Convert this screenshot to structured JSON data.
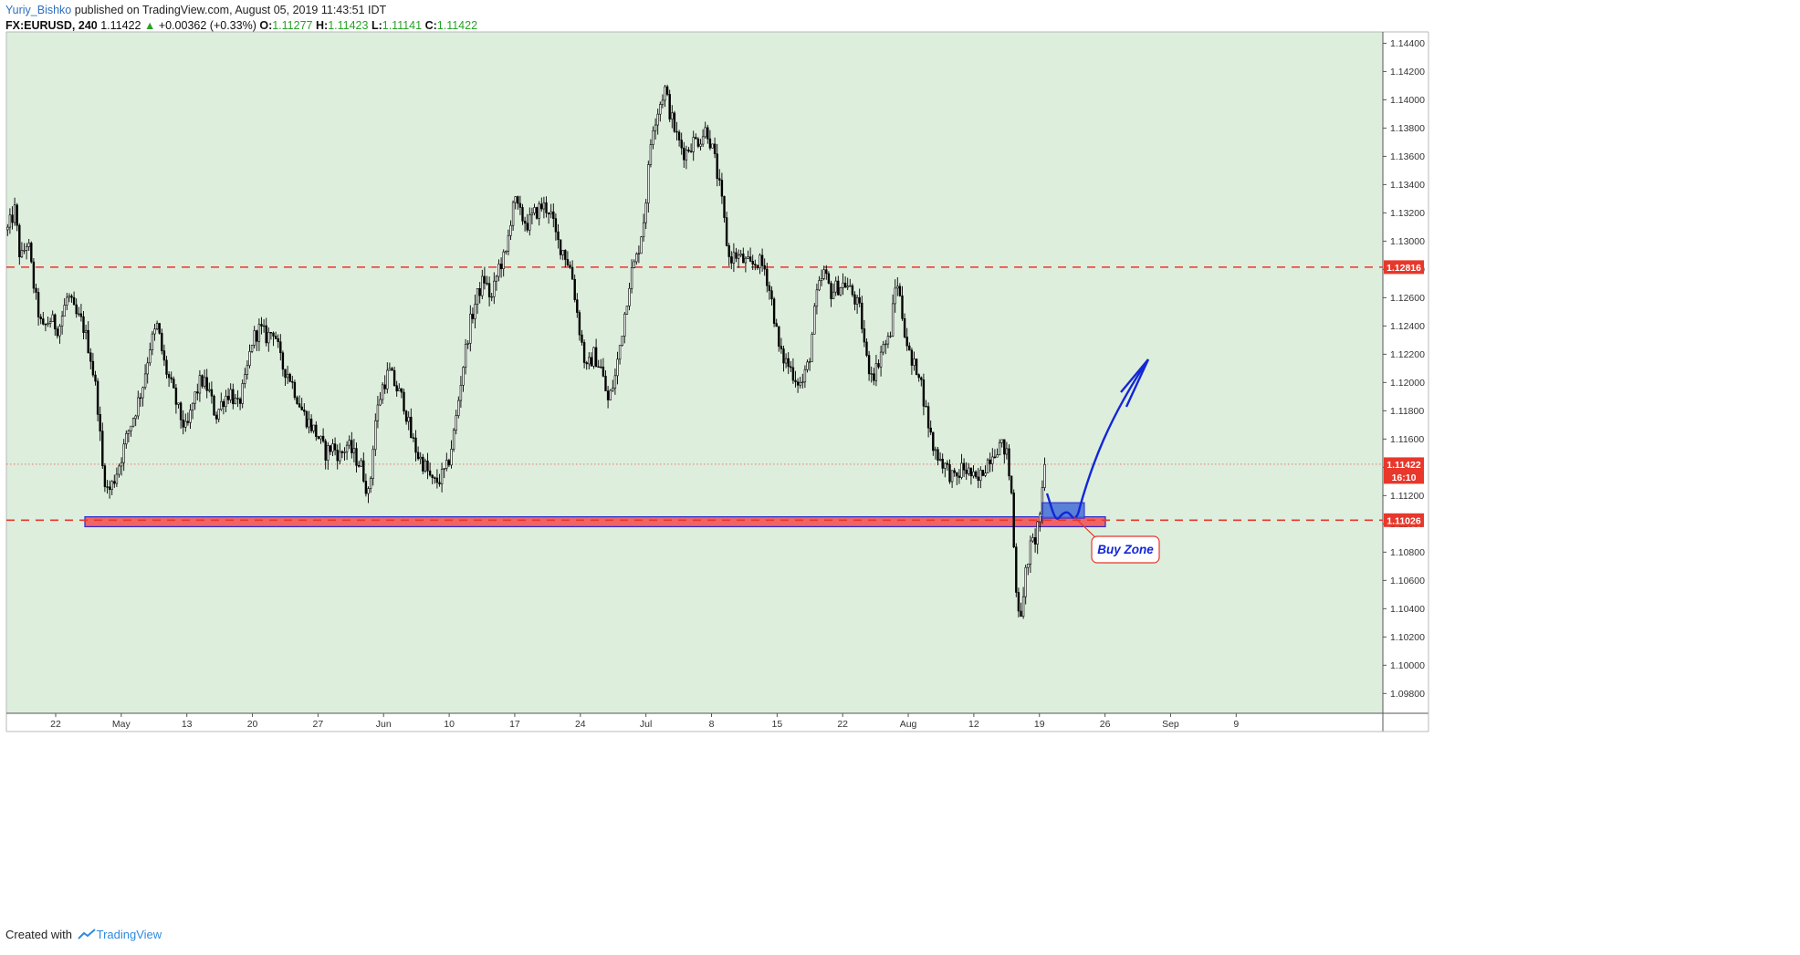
{
  "header": {
    "author": "Yuriy_Bishko",
    "published_text": "published on TradingView.com, August 05, 2019 11:43:51 IDT",
    "symbol": "FX:EURUSD, 240",
    "last": "1.11422",
    "change_arrow": "▲",
    "change": "+0.00362 (+0.33%)",
    "o_label": "O:",
    "o_value": "1.11277",
    "h_label": "H:",
    "h_value": "1.11423",
    "l_label": "L:",
    "l_value": "1.11141",
    "c_label": "C:",
    "c_value": "1.11422"
  },
  "footer": {
    "created_with": "Created with",
    "brand": "TradingView",
    "logo_icon": "tradingview-logo-icon"
  },
  "colors": {
    "chart_bg": "#ddeedd",
    "candle": "#000000",
    "level_line": "#e8372b",
    "support_zone": "#f06464",
    "buy_zone_box": "#4a74d6",
    "arrow": "#1326d8",
    "label_bg": "#e8372b",
    "label_text": "#ffffff"
  },
  "chart_data": {
    "type": "candlestick",
    "symbol": "EURUSD",
    "interval": "240",
    "yaxis": {
      "ylim": [
        1.0966,
        1.1448
      ],
      "ticks": [
        "1.14400",
        "1.14200",
        "1.14000",
        "1.13800",
        "1.13600",
        "1.13400",
        "1.13200",
        "1.13000",
        "1.12800",
        "1.12600",
        "1.12400",
        "1.12200",
        "1.12000",
        "1.11800",
        "1.11600",
        "1.11400",
        "1.11200",
        "1.11000",
        "1.10800",
        "1.10600",
        "1.10400",
        "1.10200",
        "1.10000",
        "1.09800"
      ],
      "grid": false
    },
    "xaxis": {
      "labels": [
        "22",
        "May",
        "13",
        "20",
        "27",
        "Jun",
        "10",
        "17",
        "24",
        "Jul",
        "8",
        "15",
        "22",
        "Aug",
        "12",
        "19",
        "26",
        "Sep",
        "9"
      ]
    },
    "path": [
      [
        0,
        1.1308
      ],
      [
        8,
        1.1322
      ],
      [
        14,
        1.1286
      ],
      [
        22,
        1.1301
      ],
      [
        30,
        1.1262
      ],
      [
        38,
        1.1236
      ],
      [
        46,
        1.1245
      ],
      [
        56,
        1.1238
      ],
      [
        66,
        1.1262
      ],
      [
        74,
        1.1248
      ],
      [
        82,
        1.1242
      ],
      [
        90,
        1.1222
      ],
      [
        98,
        1.119
      ],
      [
        104,
        1.114
      ],
      [
        110,
        1.1122
      ],
      [
        116,
        1.113
      ],
      [
        124,
        1.1146
      ],
      [
        132,
        1.1165
      ],
      [
        140,
        1.118
      ],
      [
        148,
        1.1198
      ],
      [
        156,
        1.1226
      ],
      [
        164,
        1.124
      ],
      [
        172,
        1.1212
      ],
      [
        180,
        1.1196
      ],
      [
        188,
        1.1178
      ],
      [
        196,
        1.1165
      ],
      [
        204,
        1.1188
      ],
      [
        212,
        1.1202
      ],
      [
        220,
        1.1195
      ],
      [
        228,
        1.1176
      ],
      [
        236,
        1.1188
      ],
      [
        244,
        1.1194
      ],
      [
        252,
        1.1182
      ],
      [
        260,
        1.12
      ],
      [
        268,
        1.123
      ],
      [
        276,
        1.1238
      ],
      [
        284,
        1.1232
      ],
      [
        292,
        1.1238
      ],
      [
        300,
        1.1212
      ],
      [
        308,
        1.1206
      ],
      [
        316,
        1.1192
      ],
      [
        324,
        1.1178
      ],
      [
        332,
        1.117
      ],
      [
        340,
        1.1162
      ],
      [
        348,
        1.115
      ],
      [
        356,
        1.1155
      ],
      [
        364,
        1.1148
      ],
      [
        372,
        1.1156
      ],
      [
        380,
        1.1148
      ],
      [
        388,
        1.114
      ],
      [
        396,
        1.1118
      ],
      [
        402,
        1.117
      ],
      [
        410,
        1.1196
      ],
      [
        418,
        1.1208
      ],
      [
        426,
        1.1196
      ],
      [
        434,
        1.1186
      ],
      [
        442,
        1.1162
      ],
      [
        450,
        1.1148
      ],
      [
        458,
        1.114
      ],
      [
        466,
        1.1128
      ],
      [
        474,
        1.1132
      ],
      [
        482,
        1.114
      ],
      [
        490,
        1.1168
      ],
      [
        498,
        1.1208
      ],
      [
        506,
        1.124
      ],
      [
        514,
        1.126
      ],
      [
        522,
        1.1274
      ],
      [
        530,
        1.1258
      ],
      [
        538,
        1.1282
      ],
      [
        546,
        1.129
      ],
      [
        554,
        1.133
      ],
      [
        562,
        1.1318
      ],
      [
        570,
        1.1312
      ],
      [
        578,
        1.132
      ],
      [
        586,
        1.1325
      ],
      [
        594,
        1.1322
      ],
      [
        602,
        1.13
      ],
      [
        610,
        1.1292
      ],
      [
        618,
        1.1278
      ],
      [
        626,
        1.124
      ],
      [
        634,
        1.1208
      ],
      [
        642,
        1.122
      ],
      [
        650,
        1.121
      ],
      [
        658,
        1.1186
      ],
      [
        666,
        1.1205
      ],
      [
        674,
        1.124
      ],
      [
        682,
        1.1275
      ],
      [
        690,
        1.129
      ],
      [
        698,
        1.132
      ],
      [
        706,
        1.138
      ],
      [
        714,
        1.1396
      ],
      [
        720,
        1.1408
      ],
      [
        726,
        1.139
      ],
      [
        734,
        1.1372
      ],
      [
        742,
        1.1362
      ],
      [
        750,
        1.137
      ],
      [
        758,
        1.1372
      ],
      [
        766,
        1.138
      ],
      [
        774,
        1.136
      ],
      [
        782,
        1.133
      ],
      [
        790,
        1.1288
      ],
      [
        798,
        1.129
      ],
      [
        806,
        1.1286
      ],
      [
        814,
        1.1282
      ],
      [
        822,
        1.1286
      ],
      [
        830,
        1.128
      ],
      [
        838,
        1.1255
      ],
      [
        846,
        1.122
      ],
      [
        854,
        1.1214
      ],
      [
        862,
        1.1205
      ],
      [
        870,
        1.1198
      ],
      [
        878,
        1.1215
      ],
      [
        886,
        1.126
      ],
      [
        894,
        1.1278
      ],
      [
        902,
        1.1264
      ],
      [
        910,
        1.1268
      ],
      [
        918,
        1.127
      ],
      [
        926,
        1.1262
      ],
      [
        934,
        1.125
      ],
      [
        942,
        1.1212
      ],
      [
        950,
        1.1206
      ],
      [
        958,
        1.1225
      ],
      [
        966,
        1.123
      ],
      [
        974,
        1.1275
      ],
      [
        982,
        1.124
      ],
      [
        990,
        1.1212
      ],
      [
        998,
        1.121
      ],
      [
        1006,
        1.118
      ],
      [
        1014,
        1.1154
      ],
      [
        1022,
        1.1146
      ],
      [
        1030,
        1.1138
      ],
      [
        1038,
        1.113
      ],
      [
        1046,
        1.114
      ],
      [
        1054,
        1.1136
      ],
      [
        1062,
        1.1128
      ],
      [
        1070,
        1.114
      ],
      [
        1078,
        1.115
      ],
      [
        1086,
        1.1156
      ],
      [
        1094,
        1.1152
      ],
      [
        1100,
        1.112
      ],
      [
        1104,
        1.106
      ],
      [
        1108,
        1.104
      ],
      [
        1112,
        1.1038
      ],
      [
        1116,
        1.107
      ],
      [
        1120,
        1.1082
      ],
      [
        1126,
        1.109
      ],
      [
        1132,
        1.1112
      ],
      [
        1138,
        1.1142
      ]
    ],
    "annotations": {
      "resistance_level": {
        "value": "1.12816",
        "price": 1.12816,
        "style": "dashed"
      },
      "support_level": {
        "value": "1.11026",
        "price": 1.11026,
        "style": "dashed"
      },
      "current_price": {
        "value": "1.11422",
        "price": 1.11422,
        "countdown": "16:10"
      },
      "support_zone_range": [
        1.1098,
        1.1105
      ],
      "buy_zone_box_range": [
        1.1104,
        1.1115
      ],
      "buy_zone_label": "Buy Zone",
      "projection_arrow": "upward projection from buy zone"
    }
  }
}
